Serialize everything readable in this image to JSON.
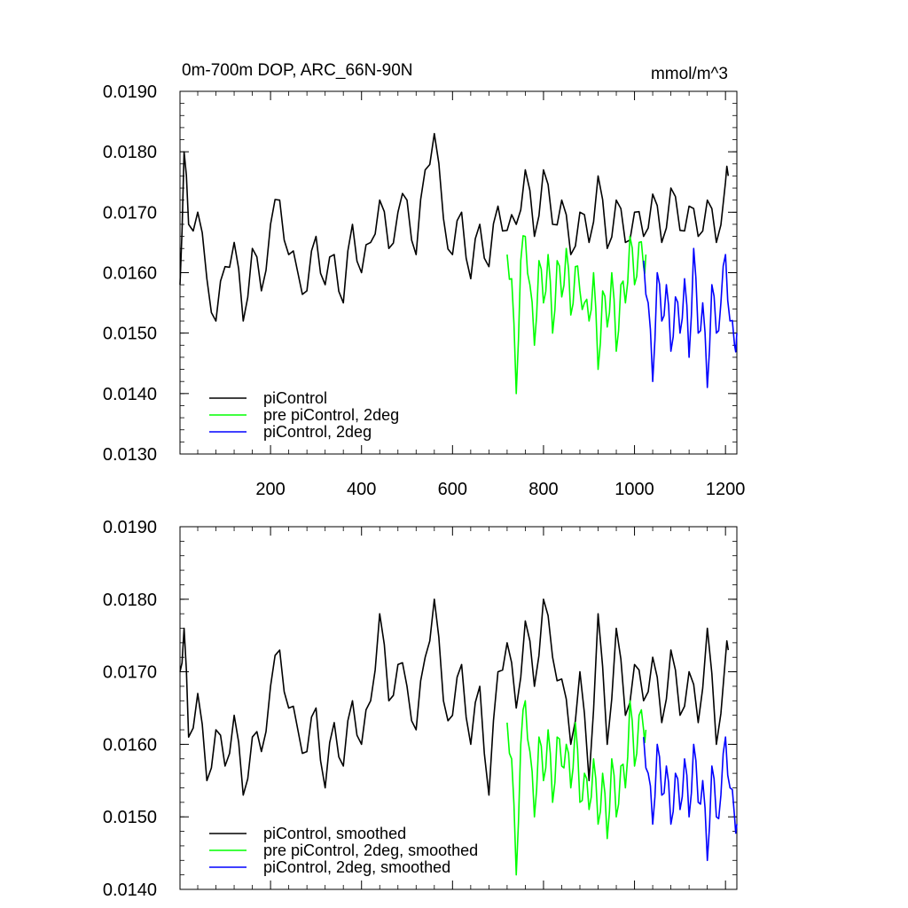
{
  "chart_data": [
    {
      "type": "line",
      "title": "0m-700m DOP, ARC_66N-90N",
      "units": "mmol/m^3",
      "xlim": [
        1,
        1225
      ],
      "ylim": [
        0.013,
        0.019
      ],
      "xticks": [
        200,
        400,
        600,
        800,
        1000,
        1200
      ],
      "xtick_labels": [
        "200",
        "400",
        "600",
        "800",
        "1000",
        "1200"
      ],
      "yticks": [
        0.013,
        0.014,
        0.015,
        0.016,
        0.017,
        0.018,
        0.019
      ],
      "ytick_labels": [
        "0.0130",
        "0.0140",
        "0.0150",
        "0.0160",
        "0.0170",
        "0.0180",
        "0.0190"
      ],
      "legend_position": "bottom-left",
      "series": [
        {
          "name": "piControl",
          "color": "#000000",
          "x": [
            1,
            10,
            20,
            40,
            60,
            80,
            100,
            120,
            140,
            160,
            180,
            200,
            220,
            240,
            260,
            280,
            300,
            320,
            340,
            360,
            380,
            400,
            420,
            440,
            460,
            480,
            500,
            520,
            540,
            560,
            580,
            600,
            620,
            640,
            660,
            680,
            700,
            720,
            740,
            760,
            780,
            800,
            820,
            840,
            860,
            880,
            900,
            920,
            940,
            960,
            980,
            1000,
            1020,
            1040,
            1060,
            1080,
            1100,
            1120,
            1140,
            1160,
            1180,
            1200,
            1206
          ],
          "y": [
            0.0158,
            0.018,
            0.0168,
            0.017,
            0.0159,
            0.0152,
            0.0161,
            0.0165,
            0.0152,
            0.0164,
            0.0157,
            0.0168,
            0.0172,
            0.0163,
            0.016,
            0.0157,
            0.0166,
            0.0158,
            0.0163,
            0.0155,
            0.0168,
            0.016,
            0.0165,
            0.0172,
            0.0164,
            0.017,
            0.0172,
            0.0163,
            0.0177,
            0.0183,
            0.0169,
            0.0163,
            0.017,
            0.0159,
            0.0168,
            0.0161,
            0.0171,
            0.0167,
            0.0168,
            0.0177,
            0.0166,
            0.0177,
            0.0168,
            0.0172,
            0.0163,
            0.017,
            0.0165,
            0.0176,
            0.0164,
            0.0172,
            0.0165,
            0.017,
            0.0166,
            0.0173,
            0.0165,
            0.0174,
            0.0167,
            0.0171,
            0.0166,
            0.0172,
            0.0165,
            0.0175,
            0.0176
          ]
        },
        {
          "name": "pre piControl, 2deg",
          "color": "#00ff00",
          "x": [
            720,
            730,
            740,
            750,
            760,
            770,
            780,
            790,
            800,
            810,
            820,
            830,
            840,
            850,
            860,
            870,
            880,
            890,
            900,
            910,
            920,
            930,
            940,
            950,
            960,
            970,
            980,
            990,
            1000,
            1010,
            1020,
            1025
          ],
          "y": [
            0.0163,
            0.0159,
            0.014,
            0.0162,
            0.0166,
            0.0158,
            0.0148,
            0.0162,
            0.0155,
            0.0163,
            0.015,
            0.0162,
            0.0156,
            0.0164,
            0.0153,
            0.0161,
            0.0157,
            0.0155,
            0.0152,
            0.016,
            0.0144,
            0.0157,
            0.0151,
            0.016,
            0.0147,
            0.0158,
            0.0155,
            0.0166,
            0.0158,
            0.0165,
            0.0161,
            0.0163
          ]
        },
        {
          "name": "piControl, 2deg",
          "color": "#0000ff",
          "x": [
            1020,
            1030,
            1040,
            1050,
            1060,
            1070,
            1080,
            1090,
            1100,
            1110,
            1120,
            1130,
            1140,
            1150,
            1160,
            1170,
            1180,
            1190,
            1200,
            1210,
            1220,
            1225
          ],
          "y": [
            0.0162,
            0.0155,
            0.0142,
            0.016,
            0.0152,
            0.0158,
            0.0147,
            0.0156,
            0.015,
            0.0159,
            0.0146,
            0.0164,
            0.015,
            0.0155,
            0.0141,
            0.0158,
            0.015,
            0.0155,
            0.0163,
            0.0152,
            0.0148,
            0.015
          ]
        }
      ]
    },
    {
      "type": "line",
      "xlim": [
        1,
        1225
      ],
      "ylim": [
        0.014,
        0.019
      ],
      "xticks": [
        200,
        400,
        600,
        800,
        1000,
        1200
      ],
      "yticks": [
        0.014,
        0.015,
        0.016,
        0.017,
        0.018,
        0.019
      ],
      "ytick_labels": [
        "0.0140",
        "0.0150",
        "0.0160",
        "0.0170",
        "0.0180",
        "0.0190"
      ],
      "legend_position": "bottom-left",
      "series": [
        {
          "name": "piControl, smoothed",
          "color": "#000000",
          "x": [
            1,
            10,
            20,
            40,
            60,
            80,
            100,
            120,
            140,
            160,
            180,
            200,
            220,
            240,
            260,
            280,
            300,
            320,
            340,
            360,
            380,
            400,
            420,
            440,
            460,
            480,
            500,
            520,
            540,
            560,
            580,
            600,
            620,
            640,
            660,
            680,
            700,
            720,
            740,
            760,
            780,
            800,
            820,
            840,
            860,
            880,
            900,
            920,
            940,
            960,
            980,
            1000,
            1020,
            1040,
            1060,
            1080,
            1100,
            1120,
            1140,
            1160,
            1180,
            1200,
            1206
          ],
          "y": [
            0.017,
            0.0176,
            0.0161,
            0.0167,
            0.0155,
            0.0162,
            0.0157,
            0.0164,
            0.0153,
            0.0161,
            0.0159,
            0.0168,
            0.0173,
            0.0165,
            0.0162,
            0.0159,
            0.0165,
            0.0154,
            0.0163,
            0.0157,
            0.0166,
            0.016,
            0.0166,
            0.0178,
            0.0166,
            0.0171,
            0.0168,
            0.0162,
            0.0172,
            0.018,
            0.0166,
            0.0164,
            0.0171,
            0.016,
            0.0168,
            0.0153,
            0.017,
            0.0174,
            0.0165,
            0.0177,
            0.0168,
            0.018,
            0.0172,
            0.0169,
            0.016,
            0.017,
            0.0155,
            0.0178,
            0.016,
            0.0176,
            0.0164,
            0.0171,
            0.0166,
            0.0172,
            0.0163,
            0.0173,
            0.0164,
            0.017,
            0.0163,
            0.0176,
            0.016,
            0.0172,
            0.0173
          ]
        },
        {
          "name": "pre piControl, 2deg, smoothed",
          "color": "#00ff00",
          "x": [
            720,
            730,
            740,
            750,
            760,
            770,
            780,
            790,
            800,
            810,
            820,
            830,
            840,
            850,
            860,
            870,
            880,
            890,
            900,
            910,
            920,
            930,
            940,
            950,
            960,
            970,
            980,
            990,
            1000,
            1010,
            1020,
            1025
          ],
          "y": [
            0.0163,
            0.0158,
            0.0142,
            0.016,
            0.0166,
            0.0159,
            0.015,
            0.0161,
            0.0155,
            0.0162,
            0.0152,
            0.0161,
            0.0157,
            0.016,
            0.0154,
            0.0163,
            0.0152,
            0.0156,
            0.0151,
            0.0158,
            0.0149,
            0.0156,
            0.0147,
            0.0158,
            0.015,
            0.0157,
            0.0154,
            0.0166,
            0.0157,
            0.0164,
            0.0162,
            0.0162
          ]
        },
        {
          "name": "piControl, 2deg, smoothed",
          "color": "#0000ff",
          "x": [
            1020,
            1030,
            1040,
            1050,
            1060,
            1070,
            1080,
            1090,
            1100,
            1110,
            1120,
            1130,
            1140,
            1150,
            1160,
            1170,
            1180,
            1190,
            1200,
            1210,
            1220,
            1225
          ],
          "y": [
            0.0161,
            0.0156,
            0.0149,
            0.016,
            0.0153,
            0.0157,
            0.0149,
            0.0156,
            0.0151,
            0.0158,
            0.015,
            0.016,
            0.0152,
            0.0155,
            0.0144,
            0.0157,
            0.015,
            0.0153,
            0.0161,
            0.0154,
            0.015,
            0.0149
          ]
        }
      ]
    }
  ]
}
